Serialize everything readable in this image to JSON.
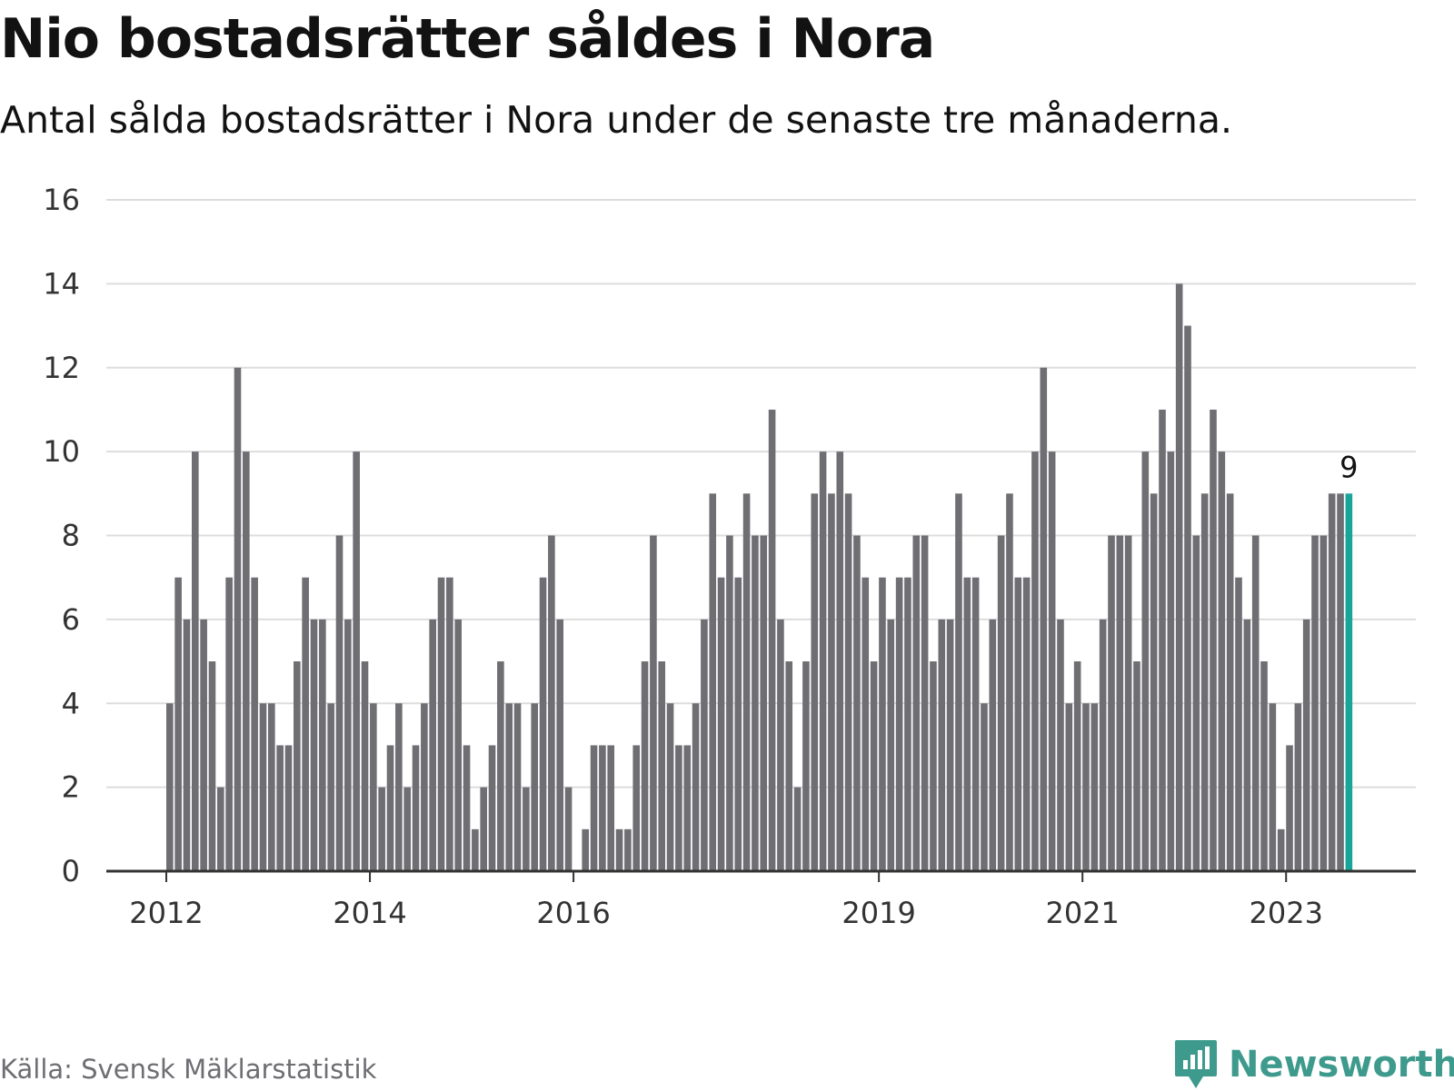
{
  "header": {
    "title": "Nio bostadsrätter såldes i Nora",
    "subtitle": "Antal sålda bostadsrätter i Nora under de senaste tre månaderna."
  },
  "footer": {
    "source": "Källa: Svensk Mäklarstatistik",
    "brand": "Newsworthy"
  },
  "colors": {
    "bar": "#6e6e73",
    "highlight": "#1aa59a",
    "grid": "#dddddd",
    "axis": "#333333",
    "brand": "#3e9a8c"
  },
  "icons": {
    "brand": "newsworthy-logo-icon"
  },
  "chart_data": {
    "type": "bar",
    "title": "Nio bostadsrätter såldes i Nora",
    "subtitle": "Antal sålda bostadsrätter i Nora under de senaste tre månaderna.",
    "xlabel": "",
    "ylabel": "",
    "ylim": [
      0,
      16
    ],
    "yticks": [
      0,
      2,
      4,
      6,
      8,
      10,
      12,
      14,
      16
    ],
    "grid": true,
    "start": "2012-01",
    "frequency": "monthly",
    "x_ticks": [
      {
        "label": "2012",
        "date": "2012-01"
      },
      {
        "label": "2014",
        "date": "2014-01"
      },
      {
        "label": "2016",
        "date": "2016-01"
      },
      {
        "label": "2019",
        "date": "2019-01"
      },
      {
        "label": "2021",
        "date": "2021-01"
      },
      {
        "label": "2023",
        "date": "2023-01"
      }
    ],
    "values": [
      4,
      7,
      6,
      10,
      6,
      5,
      2,
      7,
      12,
      10,
      7,
      4,
      4,
      3,
      3,
      5,
      7,
      6,
      6,
      4,
      8,
      6,
      10,
      5,
      4,
      2,
      3,
      4,
      2,
      3,
      4,
      6,
      7,
      7,
      6,
      3,
      1,
      2,
      3,
      5,
      4,
      4,
      2,
      4,
      7,
      8,
      6,
      2,
      0,
      1,
      3,
      3,
      3,
      1,
      1,
      3,
      5,
      8,
      5,
      4,
      3,
      3,
      4,
      6,
      9,
      7,
      8,
      7,
      9,
      8,
      8,
      11,
      6,
      5,
      2,
      5,
      9,
      10,
      9,
      10,
      9,
      8,
      7,
      5,
      7,
      6,
      7,
      7,
      8,
      8,
      5,
      6,
      6,
      9,
      7,
      7,
      4,
      6,
      8,
      9,
      7,
      7,
      10,
      12,
      10,
      6,
      4,
      5,
      4,
      4,
      6,
      8,
      8,
      8,
      5,
      10,
      9,
      11,
      10,
      14,
      13,
      8,
      9,
      11,
      10,
      9,
      7,
      6,
      8,
      5,
      4,
      1,
      3,
      4,
      6,
      8,
      8,
      9,
      9,
      9
    ],
    "highlight_last": true,
    "data_labels": [
      {
        "label": "9",
        "value": 9,
        "position": "last"
      }
    ]
  }
}
